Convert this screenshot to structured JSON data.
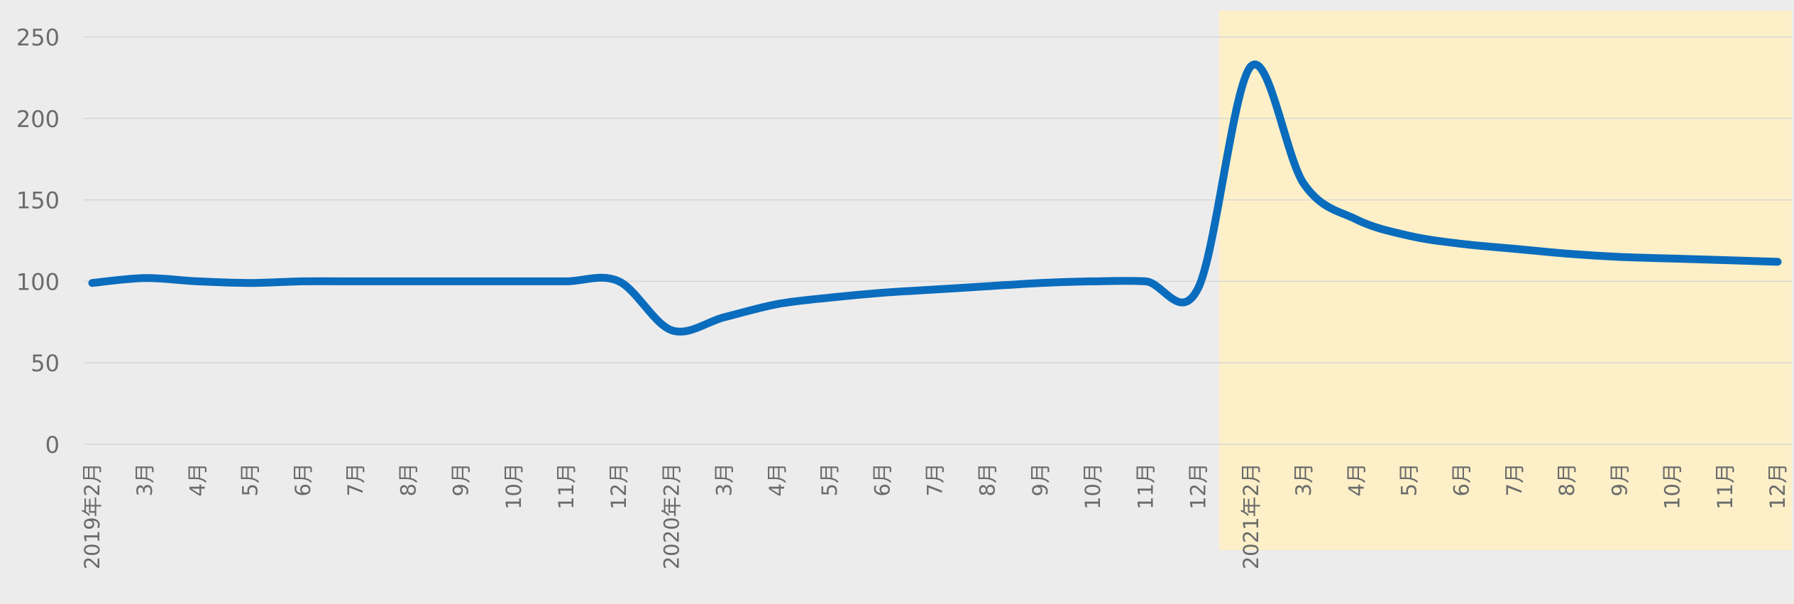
{
  "chart_data": {
    "type": "line",
    "title": "",
    "xlabel": "",
    "ylabel": "",
    "ylim": [
      0,
      250
    ],
    "yticks": [
      "0",
      "50",
      "100",
      "150",
      "200",
      "250"
    ],
    "grid": true,
    "categories": [
      "2019年2月",
      "3月",
      "4月",
      "5月",
      "6月",
      "7月",
      "8月",
      "9月",
      "10月",
      "11月",
      "12月",
      "2020年2月",
      "3月",
      "4月",
      "5月",
      "6月",
      "7月",
      "8月",
      "9月",
      "10月",
      "11月",
      "12月",
      "2021年2月",
      "3月",
      "4月",
      "5月",
      "6月",
      "7月",
      "8月",
      "9月",
      "10月",
      "11月",
      "12月"
    ],
    "series": [
      {
        "values": [
          99,
          102,
          100,
          99,
          100,
          100,
          100,
          100,
          100,
          100,
          100,
          70,
          78,
          86,
          90,
          93,
          95,
          97,
          99,
          100,
          100,
          96,
          232,
          160,
          138,
          128,
          123,
          120,
          117,
          115,
          114,
          113,
          112
        ]
      }
    ],
    "highlight_range": [
      "2021年2月",
      "12月"
    ],
    "colors": {
      "line": "#0a6cbd",
      "highlight": "#fdf0c8",
      "grid": "#d6d6d6",
      "tick_text": "#6b6b6b",
      "background": "#ececec"
    }
  }
}
